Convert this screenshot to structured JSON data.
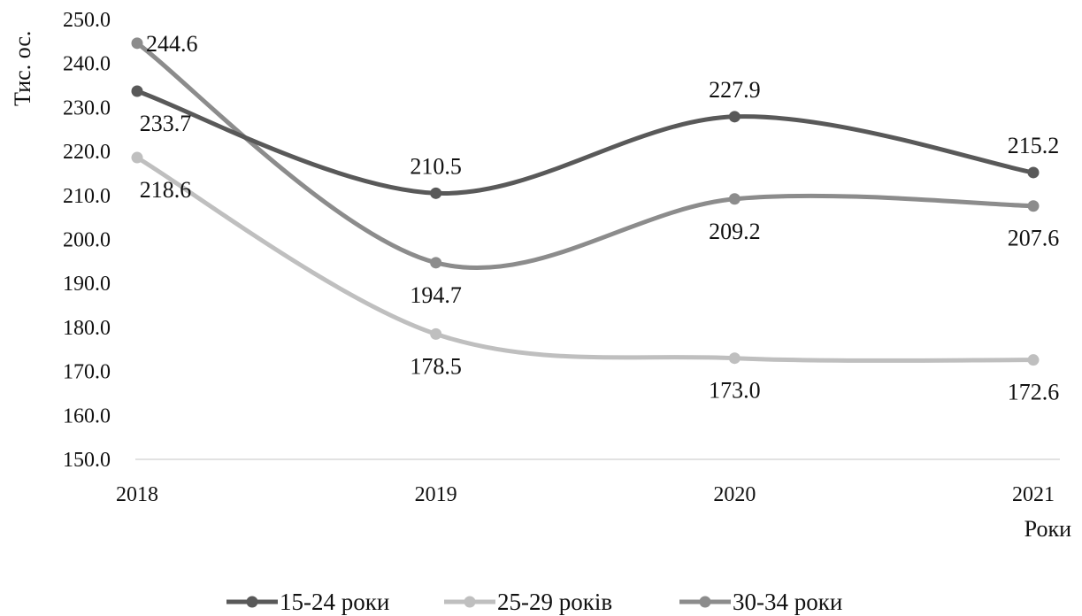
{
  "chart_data": {
    "type": "line",
    "title": "",
    "xlabel": "Роки",
    "ylabel": "Тис. ос.",
    "x": [
      "2018",
      "2019",
      "2020",
      "2021"
    ],
    "ylim": [
      150,
      250
    ],
    "yticks": [
      "150.0",
      "160.0",
      "170.0",
      "180.0",
      "190.0",
      "200.0",
      "210.0",
      "220.0",
      "230.0",
      "240.0",
      "250.0"
    ],
    "grid": false,
    "legend_position": "bottom",
    "series": [
      {
        "name": "15-24 роки",
        "values": [
          233.7,
          210.5,
          227.9,
          215.2
        ],
        "labels": [
          "233.7",
          "210.5",
          "227.9",
          "215.2"
        ],
        "label_side": [
          "below",
          "above",
          "above",
          "above"
        ],
        "color": "#595959"
      },
      {
        "name": "25-29 років",
        "values": [
          218.6,
          178.5,
          173.0,
          172.6
        ],
        "labels": [
          "218.6",
          "178.5",
          "173.0",
          "172.6"
        ],
        "label_side": [
          "below",
          "below",
          "below",
          "below"
        ],
        "color": "#bfbfbf"
      },
      {
        "name": "30-34 роки",
        "values": [
          244.6,
          194.7,
          209.2,
          207.6
        ],
        "labels": [
          "244.6",
          "194.7",
          "209.2",
          "207.6"
        ],
        "label_side": [
          "right",
          "below",
          "below",
          "below"
        ],
        "color": "#8c8c8c"
      }
    ]
  }
}
